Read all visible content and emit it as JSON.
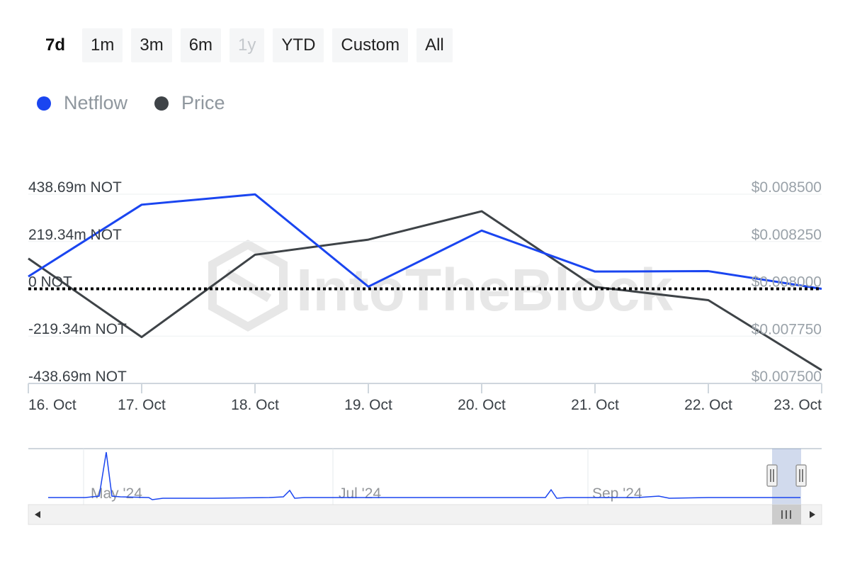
{
  "range_selector": {
    "buttons": [
      {
        "label": "7d",
        "state": "selected"
      },
      {
        "label": "1m",
        "state": "normal"
      },
      {
        "label": "3m",
        "state": "normal"
      },
      {
        "label": "6m",
        "state": "normal"
      },
      {
        "label": "1y",
        "state": "disabled"
      },
      {
        "label": "YTD",
        "state": "normal"
      },
      {
        "label": "Custom",
        "state": "normal"
      },
      {
        "label": "All",
        "state": "normal"
      }
    ]
  },
  "legend": {
    "items": [
      {
        "label": "Netflow",
        "color": "#1a45f0"
      },
      {
        "label": "Price",
        "color": "#3e4347"
      }
    ]
  },
  "watermark": "IntoTheBlock",
  "chart_data": {
    "type": "line",
    "categories": [
      "16. Oct",
      "17. Oct",
      "18. Oct",
      "19. Oct",
      "20. Oct",
      "21. Oct",
      "22. Oct",
      "23. Oct"
    ],
    "y_left": {
      "ticks": [
        438.69,
        219.34,
        0,
        -219.34,
        -438.69
      ],
      "tick_labels": [
        "438.69m NOT",
        "219.34m NOT",
        "0 NOT",
        "-219.34m NOT",
        "-438.69m NOT"
      ],
      "range": [
        -438.69,
        438.69
      ]
    },
    "y_right": {
      "ticks": [
        0.0085,
        0.00825,
        0.008,
        0.00775,
        0.0075
      ],
      "tick_labels": [
        "$0.008500",
        "$0.008250",
        "$0.008000",
        "$0.007750",
        "$0.007500"
      ],
      "range": [
        0.0075,
        0.0085
      ]
    },
    "series": [
      {
        "name": "Netflow",
        "axis": "left",
        "color": "#1a45f0",
        "values": [
          57,
          390,
          438,
          10,
          270,
          80,
          82,
          0
        ]
      },
      {
        "name": "Price",
        "axis": "right",
        "color": "#3e4347",
        "values": [
          0.00816,
          0.007745,
          0.00818,
          0.00826,
          0.00841,
          0.00801,
          0.00794,
          0.00757
        ]
      }
    ],
    "zero_line": {
      "style": "dotted",
      "value": 0
    },
    "navigator": {
      "labels": [
        "May '24",
        "Jul '24",
        "Sep '24"
      ],
      "selection": "last 7 days"
    }
  }
}
